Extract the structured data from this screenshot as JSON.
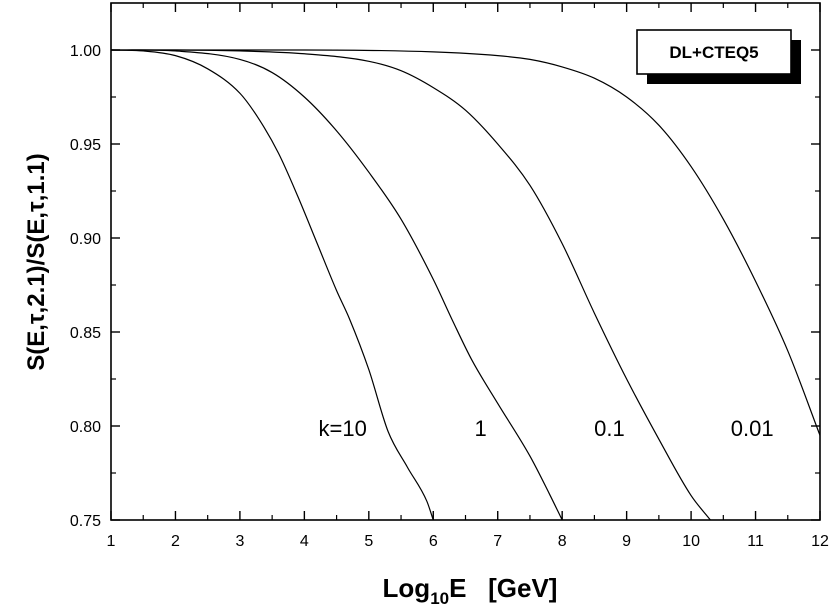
{
  "chart_data": {
    "type": "line",
    "title": "",
    "xlabel": {
      "main": "Log",
      "sub": "10",
      "tail": "E   [GeV]"
    },
    "ylabel": "S(E,τ,2.1)/S(E,τ,1.1)",
    "xlim": [
      1,
      12
    ],
    "ylim": [
      0.75,
      1.025
    ],
    "xticks": [
      1,
      2,
      3,
      4,
      5,
      6,
      7,
      8,
      9,
      10,
      11,
      12
    ],
    "yticks": [
      0.75,
      0.8,
      0.85,
      0.9,
      0.95,
      1.0
    ],
    "ytick_labels": [
      "0.75",
      "0.80",
      "0.85",
      "0.90",
      "0.95",
      "1.00"
    ],
    "legend": {
      "text": "DL+CTEQ5",
      "placement": "top-right"
    },
    "series": [
      {
        "label": "k=10",
        "x": [
          1.0,
          1.5,
          2.0,
          2.5,
          3.0,
          3.3,
          3.6,
          3.9,
          4.2,
          4.5,
          4.7,
          5.0,
          5.3,
          5.6,
          5.9,
          6.0
        ],
        "y": [
          1.0,
          0.9995,
          0.997,
          0.99,
          0.977,
          0.963,
          0.945,
          0.922,
          0.897,
          0.872,
          0.857,
          0.83,
          0.797,
          0.778,
          0.76,
          0.75
        ]
      },
      {
        "label": "1",
        "x": [
          1.0,
          2.0,
          3.0,
          3.5,
          4.0,
          4.5,
          5.0,
          5.5,
          6.0,
          6.3,
          6.6,
          7.0,
          7.5,
          7.8,
          8.0
        ],
        "y": [
          1.0,
          0.9995,
          0.995,
          0.988,
          0.975,
          0.957,
          0.935,
          0.91,
          0.878,
          0.856,
          0.835,
          0.812,
          0.784,
          0.764,
          0.75
        ]
      },
      {
        "label": "0.1",
        "x": [
          1.0,
          2.0,
          3.0,
          4.0,
          5.0,
          5.5,
          6.0,
          6.5,
          7.0,
          7.5,
          8.0,
          8.5,
          9.0,
          9.5,
          10.0,
          10.3
        ],
        "y": [
          1.0,
          1.0,
          0.9995,
          0.998,
          0.994,
          0.989,
          0.98,
          0.968,
          0.95,
          0.928,
          0.897,
          0.86,
          0.825,
          0.793,
          0.763,
          0.75
        ]
      },
      {
        "label": "0.01",
        "x": [
          1.0,
          2.0,
          4.0,
          6.0,
          7.0,
          7.5,
          8.0,
          8.5,
          9.0,
          9.5,
          10.0,
          10.5,
          11.0,
          11.5,
          12.0
        ],
        "y": [
          1.0,
          1.0,
          1.0,
          0.999,
          0.997,
          0.995,
          0.991,
          0.985,
          0.975,
          0.96,
          0.938,
          0.91,
          0.877,
          0.84,
          0.795
        ]
      }
    ],
    "curve_label_positions": [
      {
        "text": "k=10",
        "x": 4.97,
        "y": 0.799
      },
      {
        "text": "1",
        "x": 6.83,
        "y": 0.799
      },
      {
        "text": "0.1",
        "x": 8.97,
        "y": 0.799
      },
      {
        "text": "0.01",
        "x": 11.28,
        "y": 0.799
      }
    ]
  }
}
